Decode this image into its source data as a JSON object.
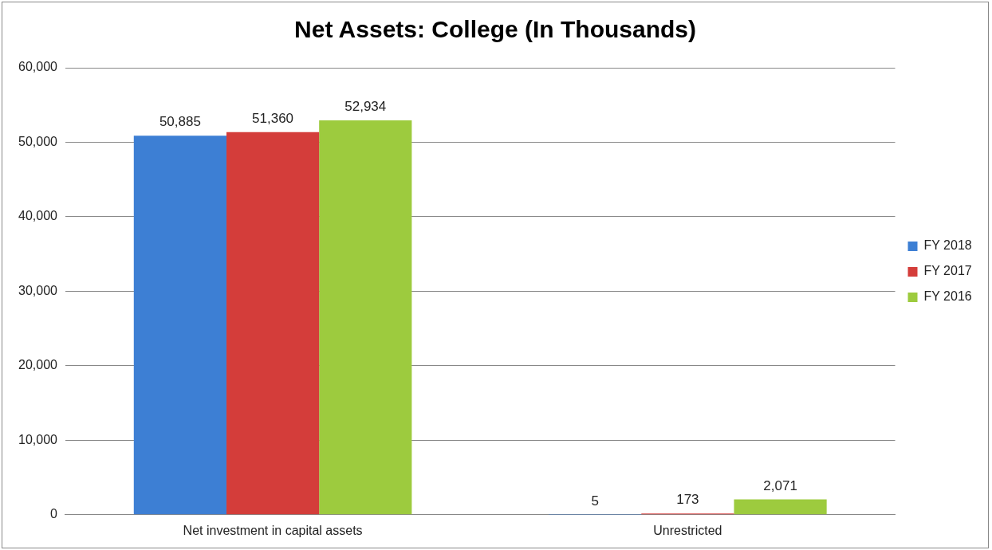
{
  "chart_data": {
    "type": "bar",
    "title": "Net Assets: College (In Thousands)",
    "categories": [
      "Net investment in capital assets",
      "Unrestricted"
    ],
    "series": [
      {
        "name": "FY 2018",
        "color": "#3d7fd4",
        "values": [
          50885,
          5
        ],
        "value_labels": [
          "50,885",
          "5"
        ]
      },
      {
        "name": "FY 2017",
        "color": "#d43d3a",
        "values": [
          51360,
          173
        ],
        "value_labels": [
          "51,360",
          "173"
        ]
      },
      {
        "name": "FY 2016",
        "color": "#9dcb3e",
        "values": [
          52934,
          2071
        ],
        "value_labels": [
          "52,934",
          "2,071"
        ]
      }
    ],
    "ylim": [
      0,
      60000
    ],
    "yticks": [
      0,
      {
        "value": 10000,
        "label": "10,000"
      },
      {
        "value": 20000,
        "label": "20,000"
      },
      {
        "value": 30000,
        "label": "30,000"
      },
      {
        "value": 40000,
        "label": "40,000"
      },
      {
        "value": 50000,
        "label": "50,000"
      },
      {
        "value": 60000,
        "label": "60,000"
      }
    ],
    "grid": "y",
    "legend": "right"
  }
}
